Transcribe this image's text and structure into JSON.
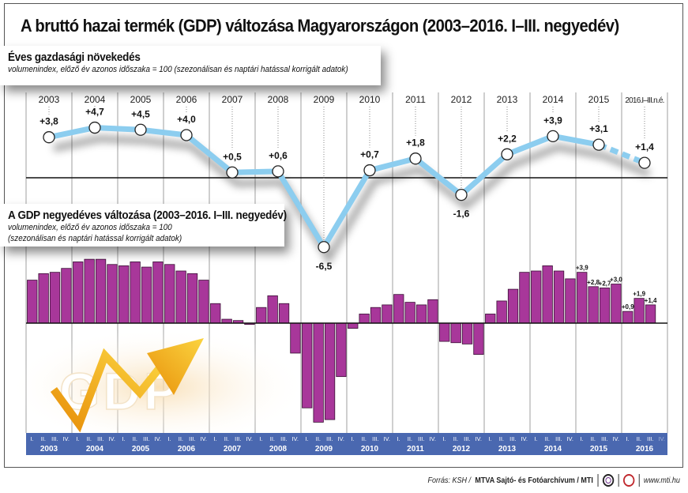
{
  "title": "A bruttó hazai termék (GDP) változása Magyarországon (2003–2016. I–III. negyedév)",
  "annual_box": {
    "title": "Éves gazdasági növekedés",
    "subtitle": "volumenindex, előző év azonos időszaka = 100 (szezonálisan és naptári hatással korrigált adatok)"
  },
  "quarterly_box": {
    "title": "A GDP negyedéves változása (2003–2016. I–III. negyedév)",
    "subtitle_1": "volumenindex, előző év azonos időszaka = 100",
    "subtitle_2": "(szezonálisan és naptári hatással korrigált adatok)"
  },
  "logo_text": "GDP",
  "colors": {
    "line": "#8ccdef",
    "bar": "#a8379a",
    "band": "#4a68b0",
    "arrow": "#f2a516"
  },
  "chart_data": [
    {
      "type": "line",
      "categories": [
        "2003",
        "2004",
        "2005",
        "2006",
        "2007",
        "2008",
        "2009",
        "2010",
        "2011",
        "2012",
        "2013",
        "2014",
        "2015",
        "2016.I–III.n.é."
      ],
      "values": [
        3.8,
        4.7,
        4.5,
        4.0,
        0.5,
        0.6,
        -6.5,
        0.7,
        1.8,
        -1.6,
        2.2,
        3.9,
        3.1,
        1.4
      ],
      "data_labels": [
        "+3,8",
        "+4,7",
        "+4,5",
        "+4,0",
        "+0,5",
        "+0,6",
        "-6,5",
        "+0,7",
        "+1,8",
        "-1,6",
        "+2,2",
        "+3,9",
        "+3,1",
        "+1,4"
      ],
      "dashed_last_segment": true,
      "zero_line": true
    },
    {
      "type": "bar",
      "years": [
        "2003",
        "2004",
        "2005",
        "2006",
        "2007",
        "2008",
        "2009",
        "2010",
        "2011",
        "2012",
        "2013",
        "2014",
        "2015",
        "2016"
      ],
      "quarter_labels": [
        "I.",
        "II.",
        "III.",
        "IV."
      ],
      "values": [
        [
          3.3,
          3.8,
          3.9,
          4.2
        ],
        [
          4.7,
          4.9,
          4.9,
          4.5
        ],
        [
          4.4,
          4.7,
          4.3,
          4.7
        ],
        [
          4.5,
          4.0,
          3.8,
          3.3
        ],
        [
          1.5,
          0.3,
          0.2,
          -0.1
        ],
        [
          1.2,
          2.1,
          1.5,
          -2.3
        ],
        [
          -6.5,
          -7.6,
          -7.4,
          -4.1
        ],
        [
          -0.4,
          0.7,
          1.2,
          1.4
        ],
        [
          2.2,
          1.6,
          1.4,
          1.8
        ],
        [
          -1.4,
          -1.5,
          -1.6,
          -2.4
        ],
        [
          0.7,
          1.7,
          2.6,
          3.9
        ],
        [
          4.0,
          4.4,
          4.0,
          3.4
        ],
        [
          3.9,
          2.8,
          2.7,
          3.0
        ],
        [
          0.9,
          1.9,
          1.4,
          null
        ]
      ],
      "data_labels": {
        "2015": [
          "+3,9",
          "+2,8",
          "+2,7",
          "+3,0"
        ],
        "2016": [
          "+0,9",
          "+1,9",
          "+1,4",
          ""
        ]
      }
    }
  ],
  "footer": {
    "source_prefix": "Forrás: KSH /",
    "source_bold": "MTVA Sajtó- és Fotóarchívum / MTI",
    "url": "www.mti.hu"
  }
}
